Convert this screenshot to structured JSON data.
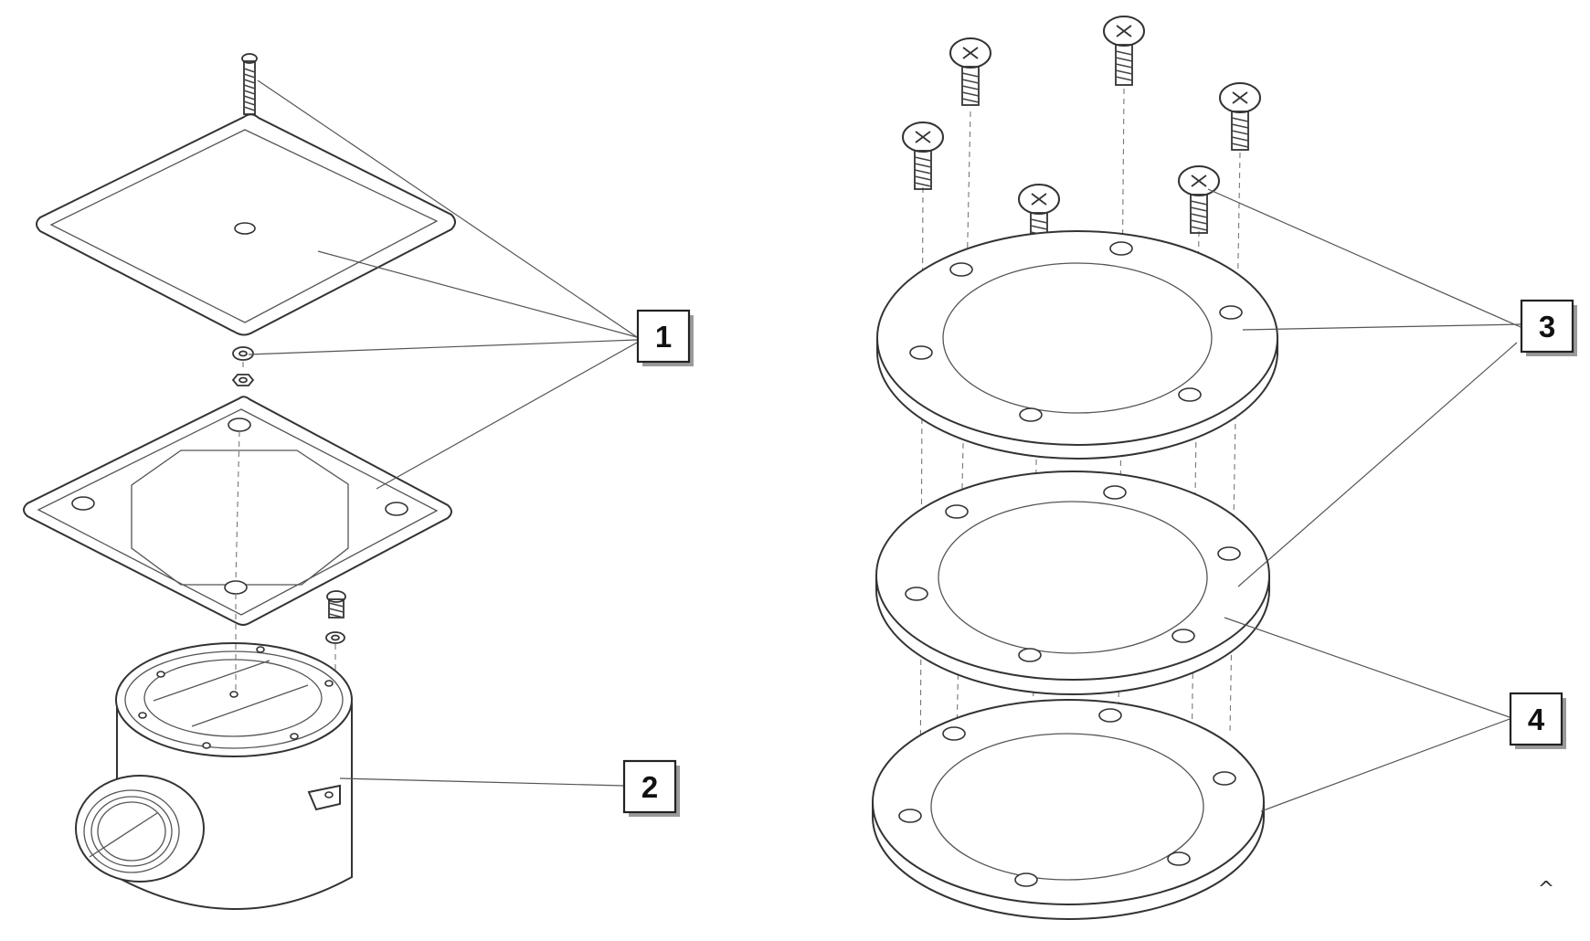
{
  "callouts": [
    {
      "id": "1",
      "label": "1"
    },
    {
      "id": "2",
      "label": "2"
    },
    {
      "id": "3",
      "label": "3"
    },
    {
      "id": "4",
      "label": "4"
    }
  ],
  "corner_mark": "^"
}
